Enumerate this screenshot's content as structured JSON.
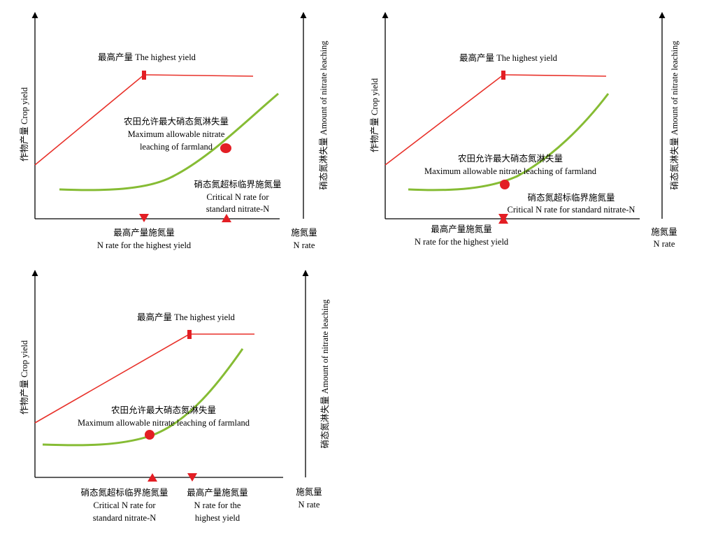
{
  "colors": {
    "yield": "#e8312a",
    "leaching": "#86bc34",
    "marker": "#e31e24",
    "axis": "#000000"
  },
  "panels": [
    {
      "id": "panel-1",
      "y_axis_label": "作物产量 Crop yield",
      "y2_axis_label": "硝态氮淋失量 Amount of nitrate leaching",
      "x_axis_label_cn": "施氮量",
      "x_axis_label_en": "N rate",
      "peak_label": "最高产量 The highest yield",
      "max_leach_lines": [
        "农田允许最大硝态氮淋失量",
        "Maximum allowable nitrate",
        "leaching of farmland"
      ],
      "critical_lines": [
        "硝态氮超标临界施氮量",
        "Critical N rate for",
        "standard nitrate-N"
      ],
      "peak_n_lines": [
        "最高产量施氮量",
        "N rate for the highest yield"
      ]
    },
    {
      "id": "panel-2",
      "y_axis_label": "作物产量 Crop yield",
      "y2_axis_label": "硝态氮淋失量 Amount of nitrate leaching",
      "x_axis_label_cn": "施氮量",
      "x_axis_label_en": "N rate",
      "peak_label": "最高产量 The highest yield",
      "max_leach_lines": [
        "农田允许最大硝态氮淋失量",
        "Maximum allowable nitrate leaching of farmland"
      ],
      "critical_lines": [
        "硝态氮超标临界施氮量",
        "Critical N rate for standard nitrate-N"
      ],
      "peak_n_lines": [
        "最高产量施氮量",
        "N rate for the highest yield"
      ]
    },
    {
      "id": "panel-3",
      "y_axis_label": "作物产量 Crop yield",
      "y2_axis_label": "硝态氮淋失量 Amount of nitrate leaching",
      "x_axis_label_cn": "施氮量",
      "x_axis_label_en": "N rate",
      "peak_label": "最高产量 The highest yield",
      "max_leach_lines": [
        "农田允许最大硝态氮淋失量",
        "Maximum allowable nitrate leaching of farmland"
      ],
      "critical_lines": [
        "硝态氮超标临界施氮量",
        "Critical N rate for",
        "standard nitrate-N"
      ],
      "peak_n_lines": [
        "最高产量施氮量",
        "N rate for the",
        "highest yield"
      ]
    }
  ]
}
